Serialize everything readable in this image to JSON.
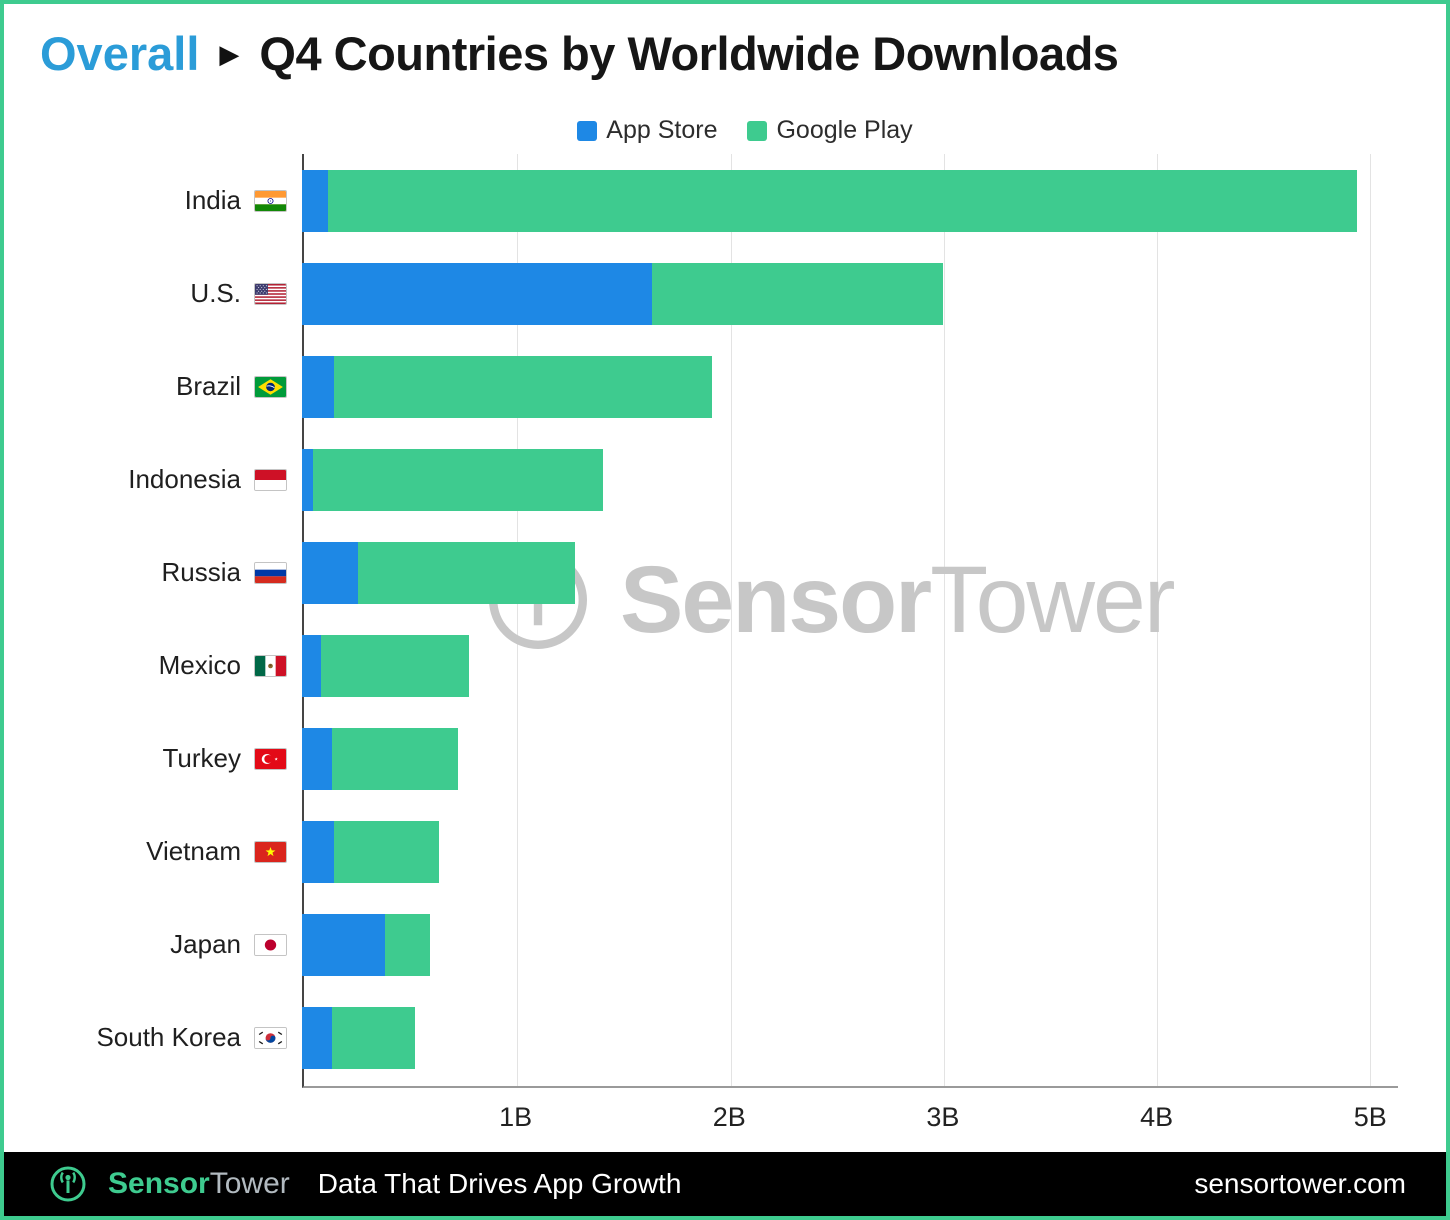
{
  "colors": {
    "title_accent": "#2b9cd8",
    "brand_green": "#3ecb8f",
    "app_store_blue": "#1e88e5",
    "footer_background": "#000000"
  },
  "header": {
    "prefix": "Overall",
    "separator": "▶",
    "title": "Q4 Countries by Worldwide Downloads"
  },
  "legend": {
    "items": [
      {
        "label": "App Store",
        "color": "#1e88e5"
      },
      {
        "label": "Google Play",
        "color": "#3ecb8f"
      }
    ]
  },
  "watermark": {
    "sensor": "Sensor",
    "tower": "Tower"
  },
  "footer": {
    "brand": {
      "sensor": "Sensor",
      "tower": "Tower"
    },
    "tagline": "Data That Drives App Growth",
    "website": "sensortower.com"
  },
  "chart_data": {
    "type": "bar",
    "orientation": "horizontal",
    "stacked": true,
    "title": "Overall — Q4 Countries by Worldwide Downloads",
    "unit": "billions of downloads",
    "grid": "vertical",
    "legend_position": "top-center",
    "categories": [
      "India",
      "U.S.",
      "Brazil",
      "Indonesia",
      "Russia",
      "Mexico",
      "Turkey",
      "Vietnam",
      "Japan",
      "South Korea"
    ],
    "flags": [
      "india",
      "us",
      "brazil",
      "indonesia",
      "russia",
      "mexico",
      "turkey",
      "vietnam",
      "japan",
      "south-korea"
    ],
    "series": [
      {
        "name": "App Store",
        "color": "#1e88e5",
        "values": [
          0.12,
          1.64,
          0.15,
          0.05,
          0.26,
          0.09,
          0.14,
          0.15,
          0.39,
          0.14
        ]
      },
      {
        "name": "Google Play",
        "color": "#3ecb8f",
        "values": [
          4.82,
          1.36,
          1.77,
          1.36,
          1.02,
          0.69,
          0.59,
          0.49,
          0.21,
          0.39
        ]
      }
    ],
    "x_ticks": [
      {
        "label": "1B",
        "value": 1
      },
      {
        "label": "2B",
        "value": 2
      },
      {
        "label": "3B",
        "value": 3
      },
      {
        "label": "4B",
        "value": 4
      },
      {
        "label": "5B",
        "value": 5
      }
    ],
    "xlim": [
      0,
      5.13
    ]
  }
}
